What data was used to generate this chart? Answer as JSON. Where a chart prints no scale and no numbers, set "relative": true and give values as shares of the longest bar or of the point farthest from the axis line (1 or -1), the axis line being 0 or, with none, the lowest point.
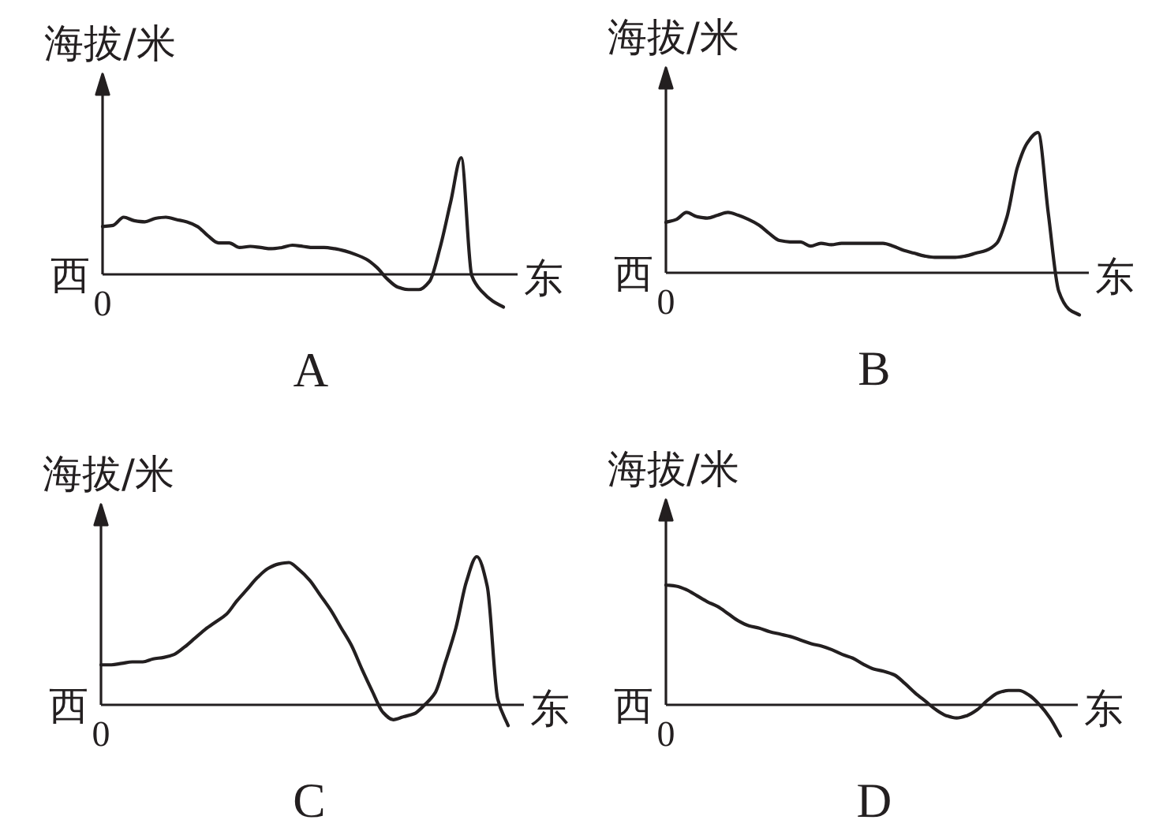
{
  "chart_data": [
    {
      "type": "line",
      "title": "A",
      "ylabel": "海拔/米",
      "annotations": [
        "西",
        "东",
        "0"
      ],
      "relative": true,
      "color": "#231f20",
      "categories": [
        null,
        null,
        null,
        null,
        null,
        null,
        null,
        null,
        null,
        null,
        null,
        null,
        null,
        null,
        null,
        null,
        null,
        null,
        null,
        null,
        null,
        null,
        null,
        null,
        null,
        null,
        null,
        null,
        null,
        null,
        null,
        null,
        null,
        null,
        null,
        null,
        null,
        null,
        null
      ],
      "values": [
        0.41,
        0.42,
        0.49,
        0.46,
        0.45,
        0.48,
        0.49,
        0.47,
        0.45,
        0.41,
        0.33,
        0.27,
        0.27,
        0.23,
        0.24,
        0.23,
        0.22,
        0.23,
        0.25,
        0.24,
        0.23,
        0.23,
        0.22,
        0.2,
        0.17,
        0.13,
        0.06,
        -0.04,
        -0.11,
        -0.13,
        -0.13,
        -0.06,
        0.23,
        0.62,
        1,
        -0.01,
        -0.15,
        -0.23,
        -0.28
      ]
    },
    {
      "type": "line",
      "title": "B",
      "ylabel": "海拔/米",
      "annotations": [
        "西",
        "东",
        "0"
      ],
      "relative": true,
      "color": "#231f20",
      "categories": [
        null,
        null,
        null,
        null,
        null,
        null,
        null,
        null,
        null,
        null,
        null,
        null,
        null,
        null,
        null,
        null,
        null,
        null,
        null,
        null,
        null,
        null,
        null,
        null,
        null,
        null,
        null,
        null,
        null,
        null,
        null,
        null,
        null,
        null,
        null,
        null,
        null,
        null,
        null,
        null,
        null
      ],
      "values": [
        0.36,
        0.38,
        0.43,
        0.4,
        0.39,
        0.41,
        0.43,
        0.41,
        0.38,
        0.34,
        0.28,
        0.23,
        0.22,
        0.22,
        0.19,
        0.21,
        0.2,
        0.21,
        0.21,
        0.21,
        0.21,
        0.21,
        0.19,
        0.16,
        0.14,
        0.12,
        0.11,
        0.11,
        0.11,
        0.12,
        0.14,
        0.16,
        0.21,
        0.4,
        0.75,
        0.93,
        1,
        0.42,
        -0.13,
        -0.26,
        -0.3
      ]
    },
    {
      "type": "line",
      "title": "C",
      "ylabel": "海拔/米",
      "annotations": [
        "西",
        "东",
        "0"
      ],
      "relative": true,
      "color": "#231f20",
      "categories": [
        null,
        null,
        null,
        null,
        null,
        null,
        null,
        null,
        null,
        null,
        null,
        null,
        null,
        null,
        null,
        null,
        null,
        null,
        null,
        null,
        null,
        null,
        null,
        null,
        null,
        null,
        null,
        null,
        null,
        null,
        null,
        null,
        null,
        null,
        null,
        null,
        null,
        null,
        null,
        null
      ],
      "values": [
        0.27,
        0.27,
        0.28,
        0.29,
        0.29,
        0.31,
        0.32,
        0.34,
        0.39,
        0.45,
        0.51,
        0.56,
        0.61,
        0.7,
        0.78,
        0.86,
        0.92,
        0.95,
        0.96,
        0.91,
        0.84,
        0.74,
        0.64,
        0.52,
        0.4,
        0.24,
        0.09,
        -0.05,
        -0.1,
        -0.08,
        -0.06,
        0.0,
        0.08,
        0.29,
        0.52,
        0.83,
        1,
        0.8,
        0.04,
        -0.14
      ]
    },
    {
      "type": "line",
      "title": "D",
      "ylabel": "海拔/米",
      "annotations": [
        "西",
        "东",
        "0"
      ],
      "relative": true,
      "color": "#231f20",
      "categories": [
        null,
        null,
        null,
        null,
        null,
        null,
        null,
        null,
        null,
        null,
        null,
        null,
        null,
        null,
        null,
        null,
        null,
        null,
        null,
        null,
        null,
        null,
        null,
        null,
        null,
        null,
        null,
        null,
        null,
        null,
        null,
        null,
        null,
        null,
        null,
        null,
        null,
        null,
        null
      ],
      "values": [
        1,
        0.99,
        0.96,
        0.91,
        0.86,
        0.82,
        0.76,
        0.7,
        0.66,
        0.64,
        0.61,
        0.59,
        0.57,
        0.54,
        0.51,
        0.49,
        0.46,
        0.42,
        0.39,
        0.34,
        0.3,
        0.28,
        0.25,
        0.18,
        0.1,
        0.03,
        -0.04,
        -0.09,
        -0.11,
        -0.09,
        -0.04,
        0.04,
        0.1,
        0.12,
        0.12,
        0.08,
        0.0,
        -0.11,
        -0.26
      ]
    }
  ]
}
